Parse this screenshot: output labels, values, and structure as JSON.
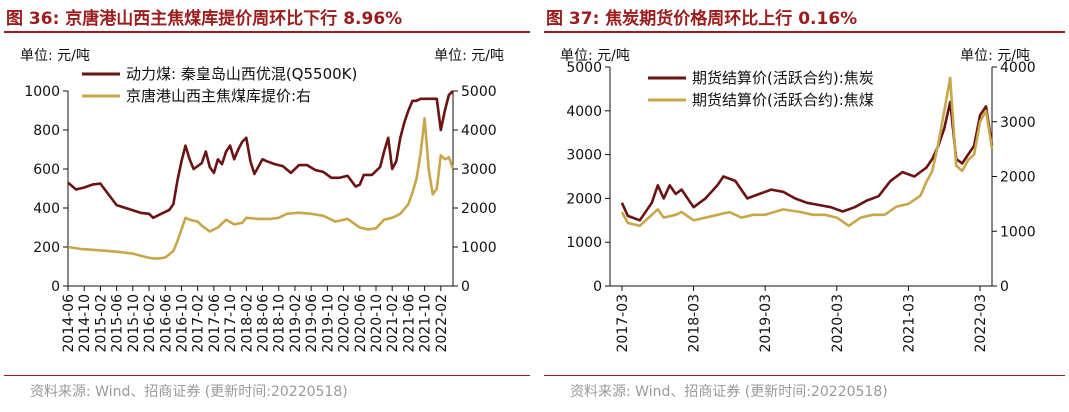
{
  "colors": {
    "title": "#9b1c1c",
    "series1": "#6b1212",
    "series2": "#c8a74a",
    "source": "#9a9a9a"
  },
  "chart_data": [
    {
      "type": "line",
      "title": "图 36: 京唐港山西主焦煤库提价周环比下行 8.96%",
      "left_unit": "单位: 元/吨",
      "right_unit": "单位: 元/吨",
      "source": "资料来源: Wind、招商证券 (更新时间:20220518)",
      "x_tick_labels": [
        "2014-06",
        "2014-10",
        "2015-02",
        "2015-06",
        "2015-10",
        "2016-02",
        "2016-06",
        "2016-10",
        "2017-02",
        "2017-06",
        "2017-10",
        "2018-02",
        "2018-06",
        "2018-10",
        "2019-02",
        "2019-06",
        "2019-10",
        "2020-02",
        "2020-06",
        "2020-10",
        "2021-02",
        "2021-06",
        "2021-10",
        "2022-02"
      ],
      "y_left": {
        "min": 0,
        "max": 1000,
        "ticks": [
          0,
          200,
          400,
          600,
          800,
          1000
        ]
      },
      "y_right": {
        "min": 0,
        "max": 5000,
        "ticks": [
          0,
          1000,
          2000,
          3000,
          4000,
          5000
        ]
      },
      "series": [
        {
          "name": "动力煤: 秦皇岛山西优混(Q5500K)",
          "axis": "left",
          "points": [
            [
              "2014-06",
              530
            ],
            [
              "2014-08",
              495
            ],
            [
              "2014-10",
              505
            ],
            [
              "2014-12",
              520
            ],
            [
              "2015-02",
              525
            ],
            [
              "2015-04",
              470
            ],
            [
              "2015-06",
              415
            ],
            [
              "2015-09",
              395
            ],
            [
              "2015-12",
              375
            ],
            [
              "2016-02",
              370
            ],
            [
              "2016-03",
              350
            ],
            [
              "2016-05",
              370
            ],
            [
              "2016-07",
              390
            ],
            [
              "2016-08",
              420
            ],
            [
              "2016-09",
              540
            ],
            [
              "2016-10",
              640
            ],
            [
              "2016-11",
              720
            ],
            [
              "2016-12",
              650
            ],
            [
              "2017-01",
              600
            ],
            [
              "2017-03",
              630
            ],
            [
              "2017-04",
              690
            ],
            [
              "2017-05",
              610
            ],
            [
              "2017-06",
              580
            ],
            [
              "2017-07",
              650
            ],
            [
              "2017-08",
              625
            ],
            [
              "2017-09",
              690
            ],
            [
              "2017-10",
              720
            ],
            [
              "2017-11",
              650
            ],
            [
              "2017-12",
              700
            ],
            [
              "2018-01",
              740
            ],
            [
              "2018-02",
              760
            ],
            [
              "2018-03",
              640
            ],
            [
              "2018-04",
              575
            ],
            [
              "2018-06",
              650
            ],
            [
              "2018-07",
              640
            ],
            [
              "2018-09",
              625
            ],
            [
              "2018-11",
              615
            ],
            [
              "2019-01",
              580
            ],
            [
              "2019-03",
              620
            ],
            [
              "2019-05",
              620
            ],
            [
              "2019-07",
              595
            ],
            [
              "2019-09",
              585
            ],
            [
              "2019-11",
              555
            ],
            [
              "2020-01",
              555
            ],
            [
              "2020-03",
              565
            ],
            [
              "2020-05",
              510
            ],
            [
              "2020-06",
              520
            ],
            [
              "2020-07",
              570
            ],
            [
              "2020-09",
              570
            ],
            [
              "2020-11",
              610
            ],
            [
              "2020-12",
              690
            ],
            [
              "2021-01",
              760
            ],
            [
              "2021-02",
              600
            ],
            [
              "2021-03",
              640
            ],
            [
              "2021-04",
              760
            ],
            [
              "2021-05",
              840
            ],
            [
              "2021-06",
              900
            ],
            [
              "2021-07",
              950
            ],
            [
              "2021-08",
              950
            ],
            [
              "2021-09",
              960
            ],
            [
              "2021-10",
              960
            ],
            [
              "2021-11",
              960
            ],
            [
              "2022-01",
              960
            ],
            [
              "2022-02",
              800
            ],
            [
              "2022-03",
              900
            ],
            [
              "2022-04",
              980
            ],
            [
              "2022-05",
              1000
            ]
          ]
        },
        {
          "name": "京唐港山西主焦煤库提价:右",
          "axis": "right",
          "points": [
            [
              "2014-06",
              1000
            ],
            [
              "2014-09",
              950
            ],
            [
              "2015-01",
              920
            ],
            [
              "2015-06",
              880
            ],
            [
              "2015-10",
              830
            ],
            [
              "2016-02",
              720
            ],
            [
              "2016-04",
              700
            ],
            [
              "2016-06",
              730
            ],
            [
              "2016-08",
              900
            ],
            [
              "2016-09",
              1150
            ],
            [
              "2016-10",
              1450
            ],
            [
              "2016-11",
              1750
            ],
            [
              "2016-12",
              1700
            ],
            [
              "2017-02",
              1650
            ],
            [
              "2017-03",
              1550
            ],
            [
              "2017-05",
              1400
            ],
            [
              "2017-07",
              1500
            ],
            [
              "2017-09",
              1700
            ],
            [
              "2017-11",
              1580
            ],
            [
              "2018-01",
              1620
            ],
            [
              "2018-02",
              1750
            ],
            [
              "2018-05",
              1720
            ],
            [
              "2018-08",
              1720
            ],
            [
              "2018-10",
              1750
            ],
            [
              "2018-12",
              1850
            ],
            [
              "2019-03",
              1880
            ],
            [
              "2019-06",
              1850
            ],
            [
              "2019-09",
              1800
            ],
            [
              "2019-12",
              1650
            ],
            [
              "2020-03",
              1720
            ],
            [
              "2020-06",
              1500
            ],
            [
              "2020-08",
              1450
            ],
            [
              "2020-10",
              1480
            ],
            [
              "2020-12",
              1700
            ],
            [
              "2021-02",
              1750
            ],
            [
              "2021-04",
              1850
            ],
            [
              "2021-06",
              2100
            ],
            [
              "2021-07",
              2400
            ],
            [
              "2021-08",
              2750
            ],
            [
              "2021-09",
              3400
            ],
            [
              "2021-10",
              4300
            ],
            [
              "2021-11",
              3000
            ],
            [
              "2021-12",
              2350
            ],
            [
              "2022-01",
              2500
            ],
            [
              "2022-02",
              3350
            ],
            [
              "2022-03",
              3250
            ],
            [
              "2022-04",
              3300
            ],
            [
              "2022-05",
              3005
            ]
          ]
        }
      ]
    },
    {
      "type": "line",
      "title": "图 37: 焦炭期货价格周环比上行 0.16%",
      "left_unit": "单位: 元/吨",
      "right_unit": "单位: 元/吨",
      "source": "资料来源: Wind、招商证券 (更新时间:20220518)",
      "x_tick_labels": [
        "2017-03",
        "2018-03",
        "2019-03",
        "2020-03",
        "2021-03",
        "2022-03"
      ],
      "y_left": {
        "min": 0,
        "max": 5000,
        "ticks": [
          0,
          1000,
          2000,
          3000,
          4000,
          5000
        ]
      },
      "y_right": {
        "min": 0,
        "max": 4000,
        "ticks": [
          0,
          1000,
          2000,
          3000,
          4000
        ]
      },
      "series": [
        {
          "name": "期货结算价(活跃合约):焦炭",
          "axis": "left",
          "points": [
            [
              "2017-03",
              1900
            ],
            [
              "2017-04",
              1600
            ],
            [
              "2017-06",
              1500
            ],
            [
              "2017-08",
              1900
            ],
            [
              "2017-09",
              2300
            ],
            [
              "2017-10",
              2000
            ],
            [
              "2017-11",
              2300
            ],
            [
              "2017-12",
              2100
            ],
            [
              "2018-01",
              2200
            ],
            [
              "2018-03",
              1800
            ],
            [
              "2018-05",
              2000
            ],
            [
              "2018-07",
              2300
            ],
            [
              "2018-08",
              2500
            ],
            [
              "2018-10",
              2400
            ],
            [
              "2018-12",
              2000
            ],
            [
              "2019-02",
              2100
            ],
            [
              "2019-04",
              2200
            ],
            [
              "2019-06",
              2150
            ],
            [
              "2019-08",
              2000
            ],
            [
              "2019-10",
              1900
            ],
            [
              "2019-12",
              1850
            ],
            [
              "2020-02",
              1800
            ],
            [
              "2020-04",
              1700
            ],
            [
              "2020-06",
              1800
            ],
            [
              "2020-08",
              1950
            ],
            [
              "2020-10",
              2050
            ],
            [
              "2020-12",
              2400
            ],
            [
              "2021-02",
              2600
            ],
            [
              "2021-04",
              2500
            ],
            [
              "2021-06",
              2700
            ],
            [
              "2021-07",
              2900
            ],
            [
              "2021-08",
              3200
            ],
            [
              "2021-09",
              3600
            ],
            [
              "2021-10",
              4200
            ],
            [
              "2021-11",
              2900
            ],
            [
              "2021-12",
              2800
            ],
            [
              "2022-01",
              3000
            ],
            [
              "2022-02",
              3200
            ],
            [
              "2022-03",
              3900
            ],
            [
              "2022-04",
              4100
            ],
            [
              "2022-05",
              3200
            ]
          ]
        },
        {
          "name": "期货结算价(活跃合约):焦煤",
          "axis": "right",
          "points": [
            [
              "2017-03",
              1350
            ],
            [
              "2017-04",
              1150
            ],
            [
              "2017-06",
              1100
            ],
            [
              "2017-08",
              1300
            ],
            [
              "2017-09",
              1400
            ],
            [
              "2017-10",
              1250
            ],
            [
              "2017-12",
              1300
            ],
            [
              "2018-01",
              1350
            ],
            [
              "2018-03",
              1200
            ],
            [
              "2018-05",
              1250
            ],
            [
              "2018-07",
              1300
            ],
            [
              "2018-09",
              1350
            ],
            [
              "2018-11",
              1250
            ],
            [
              "2019-01",
              1300
            ],
            [
              "2019-03",
              1300
            ],
            [
              "2019-06",
              1400
            ],
            [
              "2019-09",
              1350
            ],
            [
              "2019-11",
              1300
            ],
            [
              "2020-01",
              1300
            ],
            [
              "2020-03",
              1250
            ],
            [
              "2020-05",
              1100
            ],
            [
              "2020-07",
              1250
            ],
            [
              "2020-09",
              1300
            ],
            [
              "2020-11",
              1300
            ],
            [
              "2021-01",
              1450
            ],
            [
              "2021-03",
              1500
            ],
            [
              "2021-05",
              1650
            ],
            [
              "2021-06",
              1900
            ],
            [
              "2021-07",
              2100
            ],
            [
              "2021-08",
              2600
            ],
            [
              "2021-09",
              3200
            ],
            [
              "2021-10",
              3800
            ],
            [
              "2021-11",
              2200
            ],
            [
              "2021-12",
              2100
            ],
            [
              "2022-01",
              2300
            ],
            [
              "2022-02",
              2400
            ],
            [
              "2022-03",
              3000
            ],
            [
              "2022-04",
              3200
            ],
            [
              "2022-05",
              2500
            ]
          ]
        }
      ]
    }
  ]
}
